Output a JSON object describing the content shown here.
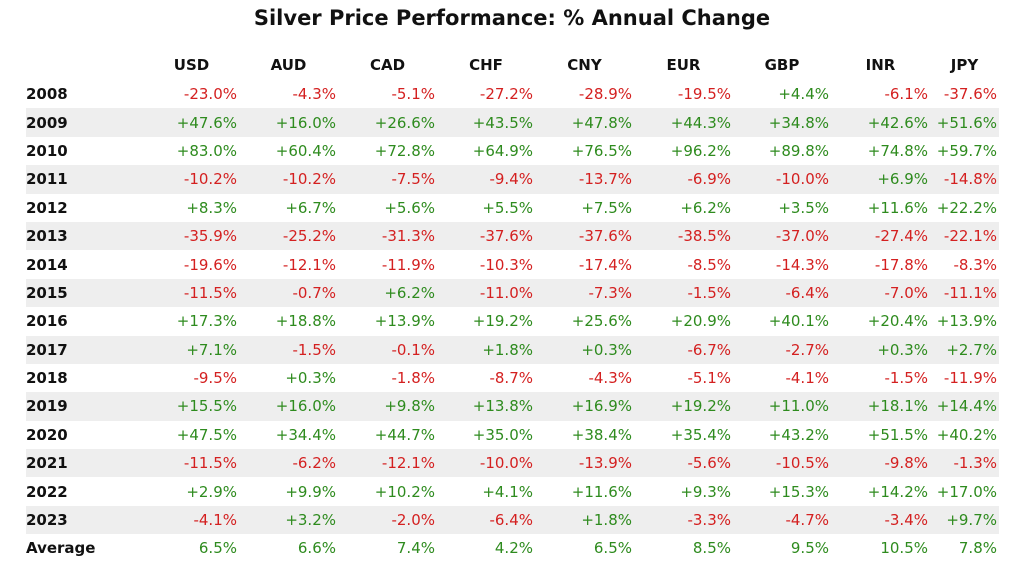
{
  "chart_data": {
    "type": "table",
    "title": "Silver Price Performance: % Annual Change",
    "columns": [
      "USD",
      "AUD",
      "CAD",
      "CHF",
      "CNY",
      "EUR",
      "GBP",
      "INR",
      "JPY"
    ],
    "rows": [
      {
        "year": "2008",
        "values": [
          "-23.0%",
          "-4.3%",
          "-5.1%",
          "-27.2%",
          "-28.9%",
          "-19.5%",
          "+4.4%",
          "-6.1%",
          "-37.6%"
        ]
      },
      {
        "year": "2009",
        "values": [
          "+47.6%",
          "+16.0%",
          "+26.6%",
          "+43.5%",
          "+47.8%",
          "+44.3%",
          "+34.8%",
          "+42.6%",
          "+51.6%"
        ]
      },
      {
        "year": "2010",
        "values": [
          "+83.0%",
          "+60.4%",
          "+72.8%",
          "+64.9%",
          "+76.5%",
          "+96.2%",
          "+89.8%",
          "+74.8%",
          "+59.7%"
        ]
      },
      {
        "year": "2011",
        "values": [
          "-10.2%",
          "-10.2%",
          "-7.5%",
          "-9.4%",
          "-13.7%",
          "-6.9%",
          "-10.0%",
          "+6.9%",
          "-14.8%"
        ]
      },
      {
        "year": "2012",
        "values": [
          "+8.3%",
          "+6.7%",
          "+5.6%",
          "+5.5%",
          "+7.5%",
          "+6.2%",
          "+3.5%",
          "+11.6%",
          "+22.2%"
        ]
      },
      {
        "year": "2013",
        "values": [
          "-35.9%",
          "-25.2%",
          "-31.3%",
          "-37.6%",
          "-37.6%",
          "-38.5%",
          "-37.0%",
          "-27.4%",
          "-22.1%"
        ]
      },
      {
        "year": "2014",
        "values": [
          "-19.6%",
          "-12.1%",
          "-11.9%",
          "-10.3%",
          "-17.4%",
          "-8.5%",
          "-14.3%",
          "-17.8%",
          "-8.3%"
        ]
      },
      {
        "year": "2015",
        "values": [
          "-11.5%",
          "-0.7%",
          "+6.2%",
          "-11.0%",
          "-7.3%",
          "-1.5%",
          "-6.4%",
          "-7.0%",
          "-11.1%"
        ]
      },
      {
        "year": "2016",
        "values": [
          "+17.3%",
          "+18.8%",
          "+13.9%",
          "+19.2%",
          "+25.6%",
          "+20.9%",
          "+40.1%",
          "+20.4%",
          "+13.9%"
        ]
      },
      {
        "year": "2017",
        "values": [
          "+7.1%",
          "-1.5%",
          "-0.1%",
          "+1.8%",
          "+0.3%",
          "-6.7%",
          "-2.7%",
          "+0.3%",
          "+2.7%"
        ]
      },
      {
        "year": "2018",
        "values": [
          "-9.5%",
          "+0.3%",
          "-1.8%",
          "-8.7%",
          "-4.3%",
          "-5.1%",
          "-4.1%",
          "-1.5%",
          "-11.9%"
        ]
      },
      {
        "year": "2019",
        "values": [
          "+15.5%",
          "+16.0%",
          "+9.8%",
          "+13.8%",
          "+16.9%",
          "+19.2%",
          "+11.0%",
          "+18.1%",
          "+14.4%"
        ]
      },
      {
        "year": "2020",
        "values": [
          "+47.5%",
          "+34.4%",
          "+44.7%",
          "+35.0%",
          "+38.4%",
          "+35.4%",
          "+43.2%",
          "+51.5%",
          "+40.2%"
        ]
      },
      {
        "year": "2021",
        "values": [
          "-11.5%",
          "-6.2%",
          "-12.1%",
          "-10.0%",
          "-13.9%",
          "-5.6%",
          "-10.5%",
          "-9.8%",
          "-1.3%"
        ]
      },
      {
        "year": "2022",
        "values": [
          "+2.9%",
          "+9.9%",
          "+10.2%",
          "+4.1%",
          "+11.6%",
          "+9.3%",
          "+15.3%",
          "+14.2%",
          "+17.0%"
        ]
      },
      {
        "year": "2023",
        "values": [
          "-4.1%",
          "+3.2%",
          "-2.0%",
          "-6.4%",
          "+1.8%",
          "-3.3%",
          "-4.7%",
          "-3.4%",
          "+9.7%"
        ]
      }
    ],
    "average": {
      "label": "Average",
      "values": [
        "6.5%",
        "6.6%",
        "7.4%",
        "4.2%",
        "6.5%",
        "8.5%",
        "9.5%",
        "10.5%",
        "7.8%"
      ]
    },
    "colors": {
      "positive": "#2e8b1e",
      "negative": "#d42020",
      "stripe": "#eeeeee"
    }
  }
}
